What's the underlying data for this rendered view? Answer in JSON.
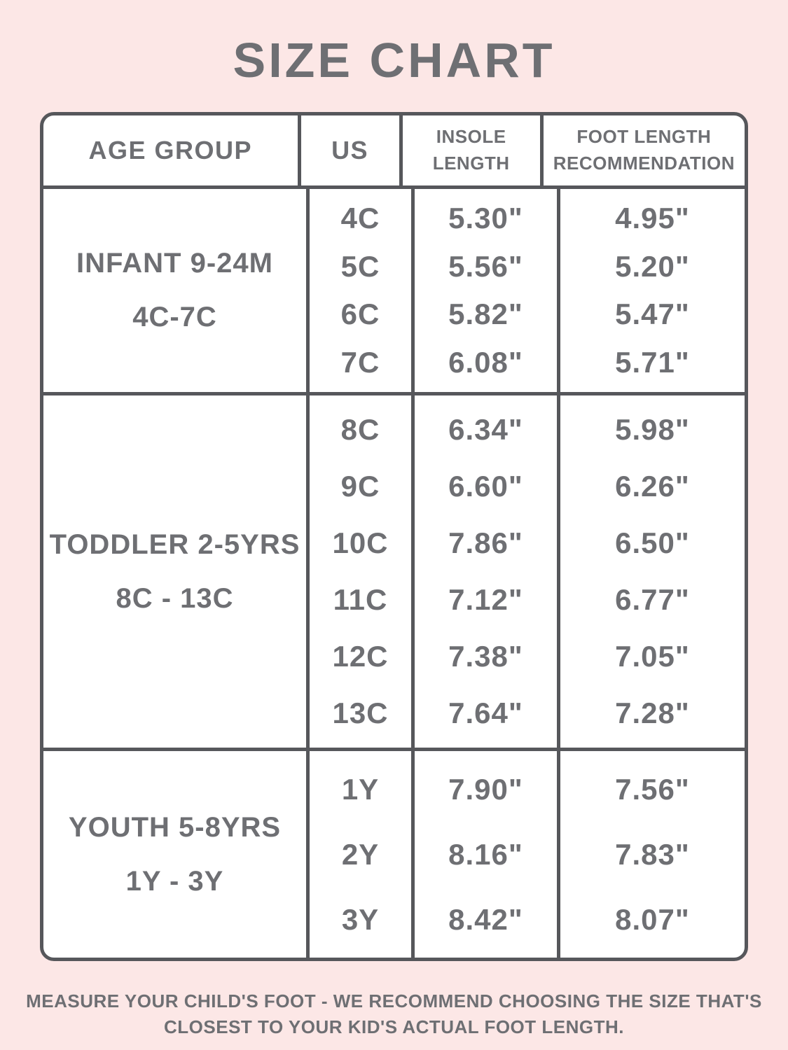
{
  "chart_data": {
    "type": "table",
    "title": "SIZE CHART",
    "columns": [
      "AGE GROUP",
      "US",
      "INSOLE LENGTH",
      "FOOT LENGTH RECOMMENDATION"
    ],
    "sections": [
      {
        "age_group_line1": "INFANT 9-24M",
        "age_group_line2": "4C-7C",
        "rows": [
          {
            "us": "4C",
            "insole_length": "5.30\"",
            "foot_length_recommendation": "4.95\""
          },
          {
            "us": "5C",
            "insole_length": "5.56\"",
            "foot_length_recommendation": "5.20\""
          },
          {
            "us": "6C",
            "insole_length": "5.82\"",
            "foot_length_recommendation": "5.47\""
          },
          {
            "us": "7C",
            "insole_length": "6.08\"",
            "foot_length_recommendation": "5.71\""
          }
        ]
      },
      {
        "age_group_line1": "TODDLER 2-5YRS",
        "age_group_line2": "8C - 13C",
        "rows": [
          {
            "us": "8C",
            "insole_length": "6.34\"",
            "foot_length_recommendation": "5.98\""
          },
          {
            "us": "9C",
            "insole_length": "6.60\"",
            "foot_length_recommendation": "6.26\""
          },
          {
            "us": "10C",
            "insole_length": "7.86\"",
            "foot_length_recommendation": "6.50\""
          },
          {
            "us": "11C",
            "insole_length": "7.12\"",
            "foot_length_recommendation": "6.77\""
          },
          {
            "us": "12C",
            "insole_length": "7.38\"",
            "foot_length_recommendation": "7.05\""
          },
          {
            "us": "13C",
            "insole_length": "7.64\"",
            "foot_length_recommendation": "7.28\""
          }
        ]
      },
      {
        "age_group_line1": "YOUTH 5-8YRS",
        "age_group_line2": "1Y - 3Y",
        "rows": [
          {
            "us": "1Y",
            "insole_length": "7.90\"",
            "foot_length_recommendation": "7.56\""
          },
          {
            "us": "2Y",
            "insole_length": "8.16\"",
            "foot_length_recommendation": "7.83\""
          },
          {
            "us": "3Y",
            "insole_length": "8.42\"",
            "foot_length_recommendation": "8.07\""
          }
        ]
      }
    ],
    "footnote_line1": "MEASURE YOUR CHILD'S FOOT - WE RECOMMEND CHOOSING THE SIZE THAT'S",
    "footnote_line2": "CLOSEST TO YOUR KID'S ACTUAL FOOT LENGTH."
  },
  "colors": {
    "background": "#fce7e6",
    "table_bg": "#ffffff",
    "border": "#56575b",
    "text": "#6e6f73"
  }
}
